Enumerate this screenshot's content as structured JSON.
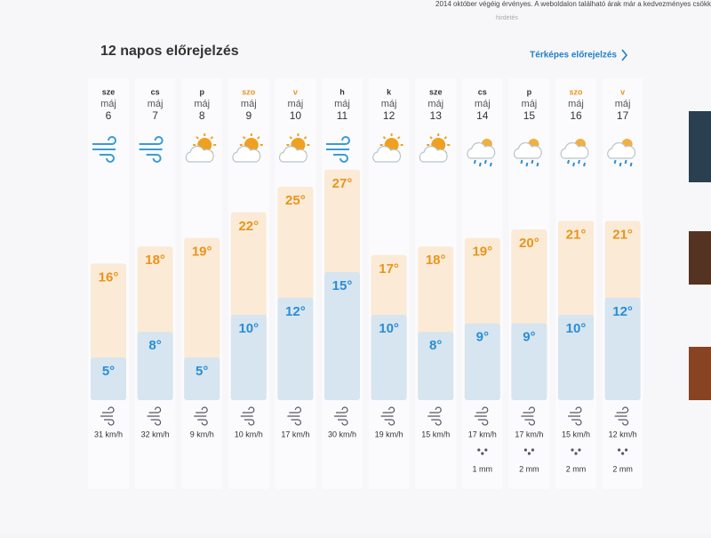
{
  "notice": "2014 október végéig érvényes. A weboldalon található árak már a kedvezményes csökkentett",
  "ad_label": "hirdetés",
  "header": {
    "title": "12 napos előrejelzés",
    "link": "Térképes előrejelzés"
  },
  "temp_colors": {
    "high": "#e8951c",
    "low": "#2a8dd6"
  },
  "days": [
    {
      "day": "sze",
      "month": "máj",
      "date": 6,
      "icon": "wind",
      "color": "#333333",
      "high": {
        "value": 16,
        "label": "16°"
      },
      "low": {
        "value": 5,
        "label": "5°"
      },
      "wind": "31 km/h",
      "precip": null
    },
    {
      "day": "cs",
      "month": "máj",
      "date": 7,
      "icon": "wind",
      "color": "#333333",
      "high": {
        "value": 18,
        "label": "18°"
      },
      "low": {
        "value": 8,
        "label": "8°"
      },
      "wind": "32 km/h",
      "precip": null
    },
    {
      "day": "p",
      "month": "máj",
      "date": 8,
      "icon": "partly-cloudy",
      "color": "#333333",
      "high": {
        "value": 19,
        "label": "19°"
      },
      "low": {
        "value": 5,
        "label": "5°"
      },
      "wind": "9 km/h",
      "precip": null
    },
    {
      "day": "szo",
      "month": "máj",
      "date": 9,
      "icon": "partly-cloudy",
      "color": "#e8951c",
      "high": {
        "value": 22,
        "label": "22°"
      },
      "low": {
        "value": 10,
        "label": "10°"
      },
      "wind": "10 km/h",
      "precip": null
    },
    {
      "day": "v",
      "month": "máj",
      "date": 10,
      "icon": "partly-cloudy",
      "color": "#e8951c",
      "high": {
        "value": 25,
        "label": "25°"
      },
      "low": {
        "value": 12,
        "label": "12°"
      },
      "wind": "17 km/h",
      "precip": null
    },
    {
      "day": "h",
      "month": "máj",
      "date": 11,
      "icon": "wind",
      "color": "#333333",
      "high": {
        "value": 27,
        "label": "27°"
      },
      "low": {
        "value": 15,
        "label": "15°"
      },
      "wind": "30 km/h",
      "precip": null
    },
    {
      "day": "k",
      "month": "máj",
      "date": 12,
      "icon": "partly-cloudy",
      "color": "#333333",
      "high": {
        "value": 17,
        "label": "17°"
      },
      "low": {
        "value": 10,
        "label": "10°"
      },
      "wind": "19 km/h",
      "precip": null
    },
    {
      "day": "sze",
      "month": "máj",
      "date": 13,
      "icon": "partly-cloudy",
      "color": "#333333",
      "high": {
        "value": 18,
        "label": "18°"
      },
      "low": {
        "value": 8,
        "label": "8°"
      },
      "wind": "15 km/h",
      "precip": null
    },
    {
      "day": "cs",
      "month": "máj",
      "date": 14,
      "icon": "rain",
      "color": "#333333",
      "high": {
        "value": 19,
        "label": "19°"
      },
      "low": {
        "value": 9,
        "label": "9°"
      },
      "wind": "17 km/h",
      "precip": "1 mm"
    },
    {
      "day": "p",
      "month": "máj",
      "date": 15,
      "icon": "rain",
      "color": "#333333",
      "high": {
        "value": 20,
        "label": "20°"
      },
      "low": {
        "value": 9,
        "label": "9°"
      },
      "wind": "17 km/h",
      "precip": "2 mm"
    },
    {
      "day": "szo",
      "month": "máj",
      "date": 16,
      "icon": "rain",
      "color": "#e8951c",
      "high": {
        "value": 21,
        "label": "21°"
      },
      "low": {
        "value": 10,
        "label": "10°"
      },
      "wind": "15 km/h",
      "precip": "2 mm"
    },
    {
      "day": "v",
      "month": "máj",
      "date": 17,
      "icon": "rain",
      "color": "#e8951c",
      "high": {
        "value": 21,
        "label": "21°"
      },
      "low": {
        "value": 12,
        "label": "12°"
      },
      "wind": "12 km/h",
      "precip": "2 mm"
    }
  ]
}
